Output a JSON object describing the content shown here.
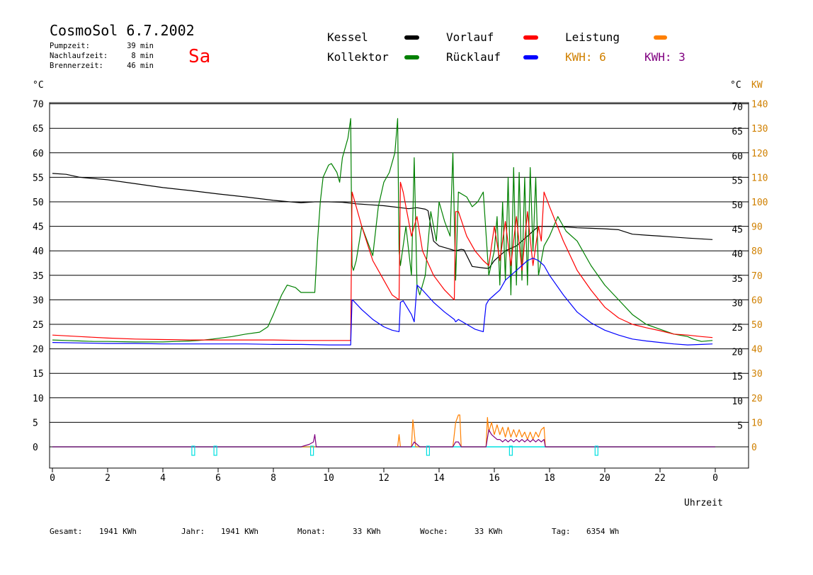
{
  "header": {
    "title": "CosmoSol 6.7.2002",
    "day": "Sa",
    "stats": [
      {
        "label": "Pumpzeit:",
        "value": "39 min"
      },
      {
        "label": "Nachlaufzeit:",
        "value": "8 min"
      },
      {
        "label": "Brennerzeit:",
        "value": "46 min"
      }
    ]
  },
  "legend": [
    {
      "label": "Kessel",
      "color": "#000000",
      "col": 0,
      "row": 0
    },
    {
      "label": "Kollektor",
      "color": "#008000",
      "col": 0,
      "row": 1
    },
    {
      "label": "Vorlauf",
      "color": "#ff0000",
      "col": 1,
      "row": 0
    },
    {
      "label": "Rücklauf",
      "color": "#0000ff",
      "col": 1,
      "row": 1
    },
    {
      "label": "Leistung",
      "color": "#ff8000",
      "col": 2,
      "row": 0
    }
  ],
  "kwh": [
    {
      "label": "KWH: 6",
      "color": "#d08000"
    },
    {
      "label": "KWH: 3",
      "color": "#800080"
    }
  ],
  "axes": {
    "left_unit": "°C",
    "right_unit": "°C",
    "right_unit2": "KW",
    "xlabel": "Uhrzeit"
  },
  "footer": [
    {
      "label": "Gesamt:",
      "value": "1941 KWh"
    },
    {
      "label": "Jahr:",
      "value": "1941 KWh"
    },
    {
      "label": "Monat:",
      "value": "33 KWh"
    },
    {
      "label": "Woche:",
      "value": "33 KWh"
    },
    {
      "label": "Tag:",
      "value": "6354 Wh"
    }
  ],
  "chart_data": {
    "type": "line",
    "title": "CosmoSol 6.7.2002",
    "xlabel": "Uhrzeit",
    "ylabel": "°C",
    "xlim": [
      0,
      24
    ],
    "ylim": [
      -4,
      70
    ],
    "grid": true,
    "x_ticks": [
      "0",
      "2",
      "4",
      "6",
      "8",
      "10",
      "12",
      "14",
      "16",
      "18",
      "20",
      "22",
      "0"
    ],
    "y_ticks_left": [
      0,
      5,
      10,
      15,
      20,
      25,
      30,
      35,
      40,
      45,
      50,
      55,
      60,
      65,
      70
    ],
    "y_ticks_right": [
      5,
      10,
      15,
      20,
      25,
      30,
      35,
      40,
      45,
      50,
      55,
      60,
      65,
      70
    ],
    "kw_ticks": [
      0,
      10,
      20,
      30,
      40,
      50,
      60,
      70,
      80,
      90,
      100,
      110,
      120,
      130,
      140
    ],
    "series": [
      {
        "name": "Kessel",
        "color": "#000000",
        "x": [
          0,
          0.5,
          1,
          2,
          3,
          4,
          5,
          6,
          7,
          8,
          8.6,
          9,
          9.5,
          10,
          10.5,
          11,
          11.5,
          12,
          12.3,
          12.6,
          12.9,
          13.2,
          13.5,
          13.6,
          13.8,
          14,
          14.3,
          14.6,
          14.8,
          14.9,
          15.2,
          15.6,
          15.8,
          16,
          16.2,
          16.4,
          16.6,
          16.8,
          17,
          17.2,
          17.4,
          17.6,
          18,
          18.5,
          19,
          19.5,
          20,
          20.5,
          21,
          21.5,
          22,
          22.5,
          23,
          23.9
        ],
        "values": [
          55.8,
          55.6,
          55,
          54.5,
          53.7,
          52.9,
          52.3,
          51.6,
          51,
          50.3,
          50,
          49.8,
          50,
          50,
          49.9,
          49.6,
          49.4,
          49.2,
          49,
          48.8,
          48.6,
          48.8,
          48.5,
          48.2,
          42,
          41,
          40.5,
          40,
          40.3,
          40.2,
          36.8,
          36.5,
          36.4,
          38,
          39,
          40,
          40.5,
          41,
          42,
          43,
          44,
          45,
          45,
          44.9,
          44.7,
          44.6,
          44.5,
          44.3,
          43.4,
          43.2,
          43,
          42.8,
          42.6,
          42.3
        ]
      },
      {
        "name": "Kollektor",
        "color": "#008000",
        "x": [
          0,
          0.5,
          1,
          1.5,
          2,
          3,
          4,
          4.5,
          5,
          5.3,
          5.8,
          6.5,
          7,
          7.5,
          7.8,
          8,
          8.3,
          8.5,
          8.8,
          9,
          9.5,
          9.6,
          9.7,
          9.8,
          10,
          10.1,
          10.3,
          10.4,
          10.5,
          10.6,
          10.7,
          10.8,
          10.85,
          10.9,
          11,
          11.2,
          11.4,
          11.6,
          11.8,
          12,
          12.2,
          12.4,
          12.5,
          12.55,
          12.6,
          12.8,
          13,
          13.1,
          13.2,
          13.3,
          13.5,
          13.7,
          13.9,
          14,
          14.2,
          14.4,
          14.5,
          14.6,
          14.7,
          15,
          15.2,
          15.4,
          15.6,
          15.8,
          16,
          16.1,
          16.2,
          16.3,
          16.4,
          16.5,
          16.6,
          16.7,
          16.8,
          16.9,
          17,
          17.1,
          17.2,
          17.3,
          17.4,
          17.5,
          17.6,
          17.8,
          18,
          18.3,
          18.6,
          19,
          19.5,
          20,
          20.5,
          21,
          21.5,
          22,
          22.5,
          23,
          23.2,
          23.5,
          23.9
        ],
        "values": [
          21.8,
          21.7,
          21.6,
          21.5,
          21.5,
          21.4,
          21.4,
          21.5,
          21.6,
          21.7,
          22,
          22.5,
          23,
          23.4,
          24.5,
          27,
          31,
          33,
          32.5,
          31.5,
          31.5,
          42,
          50,
          55,
          57.5,
          57.8,
          56,
          54,
          59,
          61,
          63,
          67,
          37,
          36,
          38,
          45,
          42,
          39,
          49,
          54,
          56,
          60,
          67,
          40,
          37,
          45,
          35,
          59,
          33,
          31,
          35,
          48,
          42,
          50,
          46,
          43,
          60,
          34,
          52,
          51,
          49,
          50,
          52,
          35,
          40,
          47,
          33,
          50,
          34,
          55,
          31,
          57,
          33,
          56,
          34,
          55,
          33,
          57,
          40,
          55,
          35,
          41,
          43,
          47,
          44,
          42,
          37,
          33,
          30,
          27,
          25,
          24,
          23,
          22.5,
          22,
          21.5,
          21.7
        ]
      },
      {
        "name": "Vorlauf",
        "color": "#ff0000",
        "x": [
          0,
          1,
          2,
          3,
          4,
          5,
          6,
          7,
          8,
          9,
          10,
          10.8,
          10.85,
          10.9,
          11.2,
          11.6,
          12,
          12.3,
          12.55,
          12.6,
          12.7,
          13,
          13.2,
          13.4,
          13.8,
          14.2,
          14.55,
          14.6,
          14.7,
          15,
          15.3,
          15.6,
          15.8,
          16,
          16.2,
          16.4,
          16.6,
          16.8,
          17,
          17.2,
          17.4,
          17.6,
          17.7,
          17.8,
          18,
          18.5,
          19,
          19.5,
          20,
          20.5,
          21,
          21.5,
          22,
          22.5,
          23,
          23.5,
          23.9
        ],
        "values": [
          22.8,
          22.5,
          22.2,
          22,
          21.9,
          21.8,
          21.8,
          21.8,
          21.8,
          21.7,
          21.7,
          21.7,
          52,
          51,
          45,
          38,
          34,
          31,
          30,
          54,
          52,
          43,
          47,
          40,
          35,
          32,
          30,
          48,
          48,
          43,
          40,
          38,
          37,
          45,
          38,
          46,
          37,
          47,
          36,
          48,
          37,
          45,
          42,
          52,
          49,
          42,
          36,
          32,
          28.5,
          26.3,
          25,
          24.3,
          23.7,
          23,
          22.8,
          22.5,
          22.3
        ]
      },
      {
        "name": "Rücklauf",
        "color": "#0000ff",
        "x": [
          0,
          1,
          2,
          3,
          4,
          5,
          6,
          7,
          8,
          9,
          10,
          10.8,
          10.85,
          10.9,
          11.2,
          11.6,
          12,
          12.3,
          12.55,
          12.6,
          12.7,
          13,
          13.1,
          13.2,
          13.4,
          13.8,
          14.2,
          14.55,
          14.6,
          14.7,
          15,
          15.3,
          15.6,
          15.7,
          15.8,
          16,
          16.2,
          16.4,
          16.6,
          16.8,
          17,
          17.2,
          17.4,
          17.6,
          17.8,
          18,
          18.5,
          19,
          19.5,
          20,
          20.5,
          21,
          21.5,
          22,
          22.5,
          23,
          23.5,
          23.9
        ],
        "values": [
          21.3,
          21.2,
          21.1,
          21.1,
          21,
          21,
          21,
          21,
          20.9,
          20.9,
          20.8,
          20.8,
          30,
          29.8,
          28,
          26,
          24.5,
          23.8,
          23.5,
          29.5,
          29.8,
          27,
          25.5,
          33,
          32,
          29.5,
          27.5,
          26,
          25.5,
          26,
          25,
          24,
          23.5,
          29,
          30,
          31,
          32,
          34,
          35,
          36,
          37,
          38,
          38.5,
          38,
          37,
          35,
          31,
          27.5,
          25.3,
          23.8,
          22.8,
          22,
          21.6,
          21.3,
          21,
          20.8,
          20.9,
          21
        ]
      },
      {
        "name": "Leistung",
        "color": "#ff8000",
        "axis": "KW",
        "x": [
          0,
          12.5,
          12.55,
          12.6,
          13,
          13.05,
          13.1,
          13.15,
          13.2,
          14.5,
          14.6,
          14.7,
          14.75,
          14.8,
          15.7,
          15.75,
          15.8,
          15.9,
          16,
          16.1,
          16.2,
          16.3,
          16.4,
          16.5,
          16.6,
          16.7,
          16.8,
          16.9,
          17,
          17.1,
          17.2,
          17.3,
          17.4,
          17.5,
          17.6,
          17.7,
          17.8,
          17.85,
          24
        ],
        "values": [
          0,
          0,
          5,
          0,
          0,
          11,
          6,
          0,
          0,
          0,
          10,
          13,
          13,
          0,
          0,
          12,
          6,
          10,
          5,
          9,
          5,
          8,
          4,
          8,
          4,
          7,
          4,
          7,
          4,
          6,
          3,
          6,
          3,
          6,
          4,
          7,
          8,
          0,
          0
        ]
      },
      {
        "name": "KWH: 3",
        "color": "#800080",
        "axis": "KW",
        "x": [
          0,
          9,
          9.3,
          9.45,
          9.5,
          9.55,
          13,
          13.1,
          13.2,
          13.3,
          14.5,
          14.6,
          14.7,
          14.8,
          15.7,
          15.8,
          15.9,
          16,
          16.1,
          16.2,
          16.3,
          16.4,
          16.5,
          16.6,
          16.7,
          16.8,
          16.9,
          17,
          17.1,
          17.2,
          17.3,
          17.4,
          17.5,
          17.6,
          17.7,
          17.8,
          17.85,
          24
        ],
        "values": [
          0,
          0,
          1,
          2,
          5,
          0,
          0,
          2,
          1,
          0,
          0,
          2,
          2,
          0,
          0,
          7,
          5,
          4,
          3,
          3,
          2,
          3,
          2,
          3,
          2,
          3,
          2,
          3,
          2,
          3,
          2,
          3,
          2,
          3,
          2,
          3,
          0,
          0
        ]
      },
      {
        "name": "",
        "color": "#00e0e0",
        "axis": "pulse",
        "x": [
          5.1,
          5.9,
          9.4,
          13.6,
          16.6,
          19.7
        ],
        "values": [
          1,
          1,
          1,
          1,
          1,
          1
        ]
      }
    ]
  }
}
